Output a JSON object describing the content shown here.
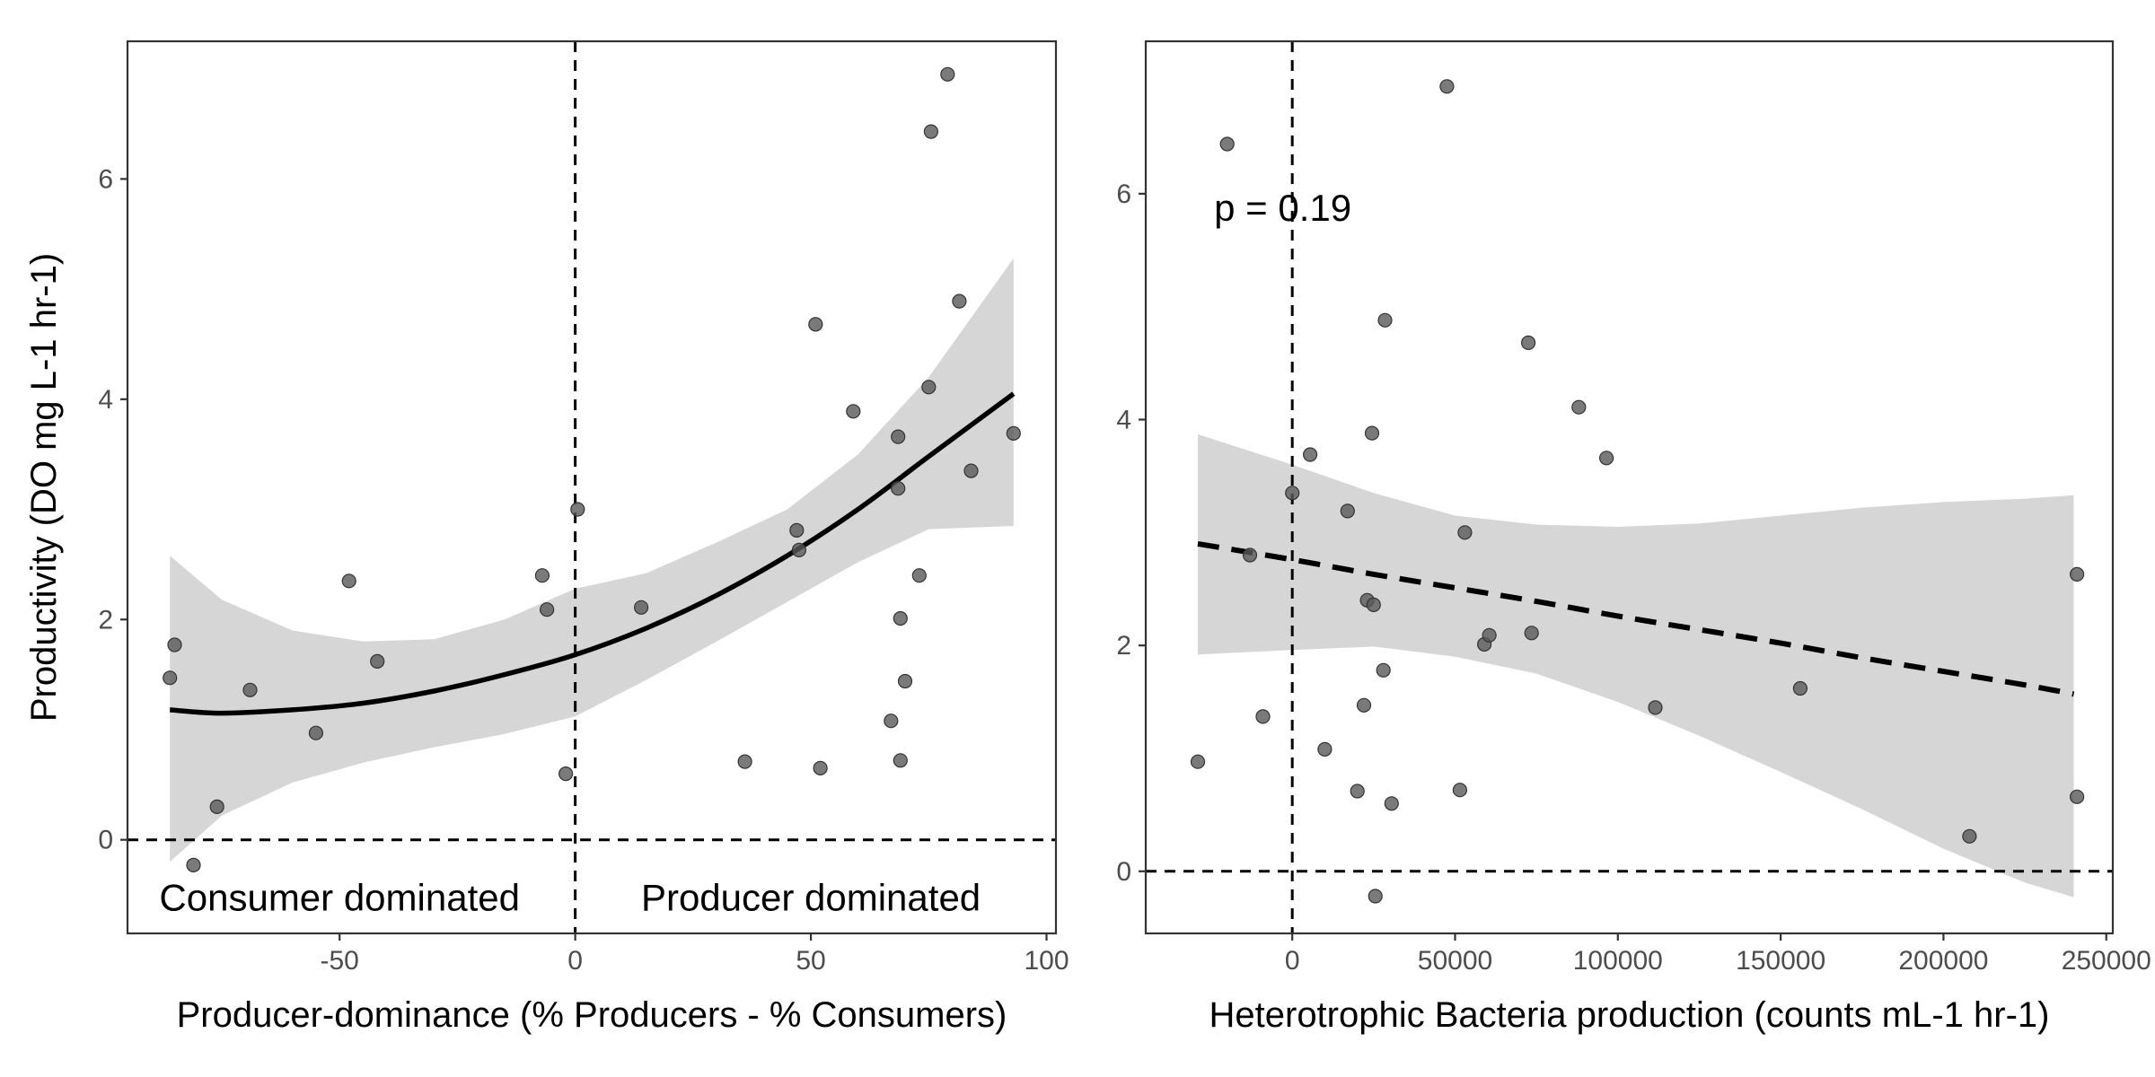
{
  "chart_data": [
    {
      "type": "scatter",
      "panel": "left",
      "xlabel": "Producer-dominance (% Producers - % Consumers)",
      "ylabel": "Productivity (DO mg L-1 hr-1)",
      "xlim": [
        -95,
        102
      ],
      "ylim": [
        -0.85,
        7.25
      ],
      "xticks": [
        -50,
        0,
        50,
        100
      ],
      "yticks": [
        0,
        2,
        4,
        6
      ],
      "xtick_labels": [
        "-50",
        "0",
        "50",
        "100"
      ],
      "ytick_labels": [
        "0",
        "2",
        "4",
        "6"
      ],
      "reference_lines": {
        "vertical_x": 0,
        "horizontal_y": 0
      },
      "annotations": [
        {
          "text": "Consumer dominated",
          "x": -50,
          "y": -0.53
        },
        {
          "text": "Producer dominated",
          "x": 50,
          "y": -0.53
        }
      ],
      "fit": {
        "style": "solid",
        "x": [
          -86,
          -75,
          -60,
          -45,
          -30,
          -15,
          0,
          15,
          30,
          45,
          60,
          75,
          93
        ],
        "y": [
          1.18,
          1.15,
          1.18,
          1.24,
          1.35,
          1.5,
          1.68,
          1.92,
          2.22,
          2.58,
          3.0,
          3.48,
          4.05
        ],
        "ci_lower": [
          -0.2,
          0.22,
          0.52,
          0.7,
          0.84,
          0.96,
          1.12,
          1.45,
          1.8,
          2.16,
          2.52,
          2.82,
          2.85
        ],
        "ci_upper": [
          2.58,
          2.18,
          1.9,
          1.8,
          1.82,
          2.0,
          2.28,
          2.42,
          2.7,
          3.0,
          3.5,
          4.2,
          5.28
        ]
      },
      "points": [
        {
          "x": -86,
          "y": 1.47
        },
        {
          "x": -85,
          "y": 1.77
        },
        {
          "x": -76,
          "y": 0.3
        },
        {
          "x": -81,
          "y": -0.23
        },
        {
          "x": -69,
          "y": 1.36
        },
        {
          "x": -55,
          "y": 0.97
        },
        {
          "x": -48,
          "y": 2.35
        },
        {
          "x": -42,
          "y": 1.62
        },
        {
          "x": -7,
          "y": 2.4
        },
        {
          "x": -6,
          "y": 2.09
        },
        {
          "x": -2,
          "y": 0.6
        },
        {
          "x": 0.5,
          "y": 3.0
        },
        {
          "x": 14,
          "y": 2.11
        },
        {
          "x": 36,
          "y": 0.71
        },
        {
          "x": 47,
          "y": 2.81
        },
        {
          "x": 47.5,
          "y": 2.63
        },
        {
          "x": 51,
          "y": 4.68
        },
        {
          "x": 52,
          "y": 0.65
        },
        {
          "x": 59,
          "y": 3.89
        },
        {
          "x": 67,
          "y": 1.08
        },
        {
          "x": 68.5,
          "y": 3.66
        },
        {
          "x": 68.5,
          "y": 3.19
        },
        {
          "x": 69,
          "y": 2.01
        },
        {
          "x": 69,
          "y": 0.72
        },
        {
          "x": 70,
          "y": 1.44
        },
        {
          "x": 73,
          "y": 2.4
        },
        {
          "x": 75,
          "y": 4.11
        },
        {
          "x": 75.5,
          "y": 6.43
        },
        {
          "x": 79,
          "y": 6.95
        },
        {
          "x": 81.5,
          "y": 4.89
        },
        {
          "x": 84,
          "y": 3.35
        },
        {
          "x": 93,
          "y": 3.69
        }
      ]
    },
    {
      "type": "scatter",
      "panel": "right",
      "xlabel": "Heterotrophic Bacteria production (counts mL-1 hr-1)",
      "ylabel": "",
      "xlim": [
        -45000,
        252000
      ],
      "ylim": [
        -0.55,
        7.35
      ],
      "xticks": [
        0,
        50000,
        100000,
        150000,
        200000,
        250000
      ],
      "yticks": [
        0,
        2,
        4,
        6
      ],
      "xtick_labels": [
        "0",
        "50000",
        "100000",
        "150000",
        "200000",
        "250000"
      ],
      "ytick_labels": [
        "0",
        "2",
        "4",
        "6"
      ],
      "reference_lines": {
        "vertical_x": 0,
        "horizontal_y": 0
      },
      "annotations": [
        {
          "text": "p = 0.19",
          "x": -24000,
          "y": 5.87
        }
      ],
      "fit": {
        "style": "dashed",
        "x": [
          -29000,
          0,
          25000,
          50000,
          75000,
          100000,
          125000,
          150000,
          175000,
          200000,
          225000,
          240000
        ],
        "y": [
          2.9,
          2.76,
          2.63,
          2.51,
          2.39,
          2.26,
          2.14,
          2.02,
          1.89,
          1.77,
          1.65,
          1.57
        ],
        "ci_lower": [
          1.92,
          1.96,
          1.99,
          1.9,
          1.75,
          1.5,
          1.2,
          0.88,
          0.55,
          0.2,
          -0.1,
          -0.23
        ],
        "ci_upper": [
          3.87,
          3.6,
          3.35,
          3.15,
          3.07,
          3.05,
          3.08,
          3.15,
          3.22,
          3.27,
          3.3,
          3.33
        ]
      },
      "points": [
        {
          "x": -29000,
          "y": 0.97
        },
        {
          "x": -20000,
          "y": 6.44
        },
        {
          "x": -13000,
          "y": 2.8
        },
        {
          "x": -9000,
          "y": 1.37
        },
        {
          "x": 0,
          "y": 3.35
        },
        {
          "x": 5500,
          "y": 3.69
        },
        {
          "x": 10000,
          "y": 1.08
        },
        {
          "x": 17000,
          "y": 3.19
        },
        {
          "x": 20000,
          "y": 0.71
        },
        {
          "x": 22000,
          "y": 1.47
        },
        {
          "x": 23000,
          "y": 2.4
        },
        {
          "x": 24500,
          "y": 3.88
        },
        {
          "x": 25000,
          "y": 2.36
        },
        {
          "x": 25500,
          "y": -0.22
        },
        {
          "x": 28000,
          "y": 1.78
        },
        {
          "x": 28500,
          "y": 4.88
        },
        {
          "x": 30500,
          "y": 0.6
        },
        {
          "x": 47500,
          "y": 6.95
        },
        {
          "x": 51500,
          "y": 0.72
        },
        {
          "x": 53000,
          "y": 3.0
        },
        {
          "x": 59000,
          "y": 2.01
        },
        {
          "x": 60500,
          "y": 2.09
        },
        {
          "x": 72500,
          "y": 4.68
        },
        {
          "x": 73500,
          "y": 2.11
        },
        {
          "x": 88000,
          "y": 4.11
        },
        {
          "x": 96500,
          "y": 3.66
        },
        {
          "x": 111500,
          "y": 1.45
        },
        {
          "x": 156000,
          "y": 1.62
        },
        {
          "x": 208000,
          "y": 0.31
        },
        {
          "x": 241000,
          "y": 2.63
        },
        {
          "x": 241000,
          "y": 0.66
        }
      ]
    }
  ]
}
